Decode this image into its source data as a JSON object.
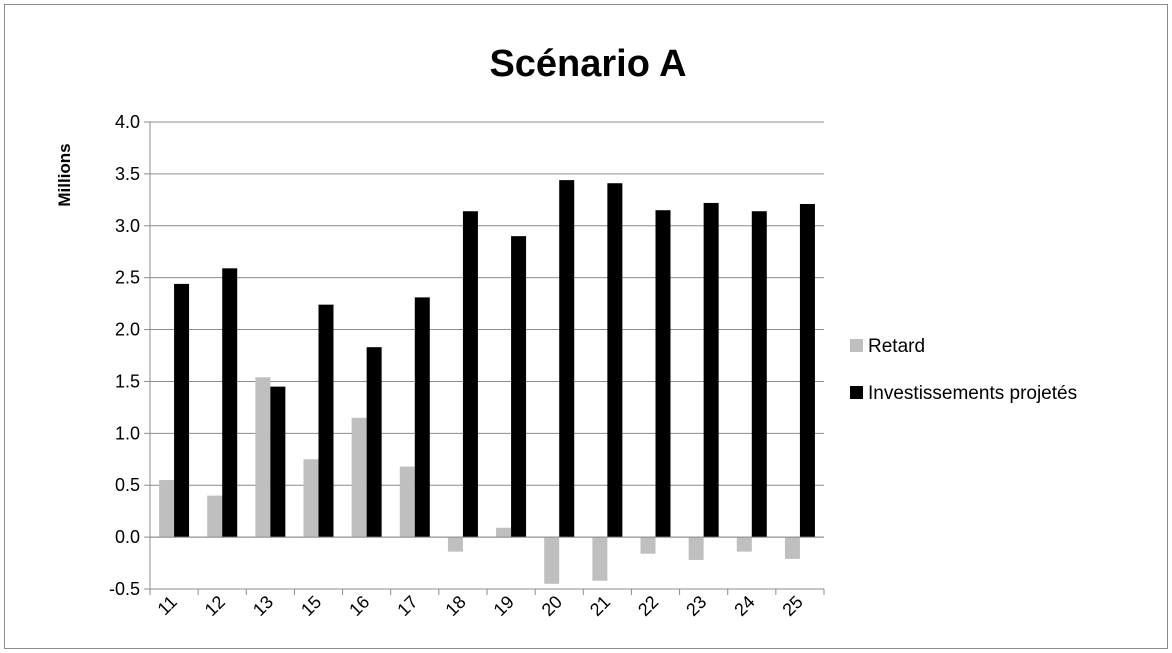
{
  "chart_data": {
    "type": "bar",
    "title": "Scénario A",
    "ylabel": "Millions",
    "xlabel": "",
    "categories": [
      "11",
      "12",
      "13",
      "15",
      "16",
      "17",
      "18",
      "19",
      "20",
      "21",
      "22",
      "23",
      "24",
      "25"
    ],
    "series": [
      {
        "name": "Retard",
        "color": "#bfbfbf",
        "values": [
          0.55,
          0.4,
          1.54,
          0.75,
          1.15,
          0.68,
          -0.14,
          0.09,
          -0.45,
          -0.42,
          -0.16,
          -0.22,
          -0.14,
          -0.21
        ]
      },
      {
        "name": "Investissements projetés",
        "color": "#000000",
        "values": [
          2.44,
          2.59,
          1.45,
          2.24,
          1.83,
          2.31,
          3.14,
          2.9,
          3.44,
          3.41,
          3.15,
          3.22,
          3.14,
          3.21
        ]
      }
    ],
    "ylim": [
      -0.5,
      4.0
    ],
    "yticks": [
      "-0.5",
      "0.0",
      "0.5",
      "1.0",
      "1.5",
      "2.0",
      "2.5",
      "3.0",
      "3.5",
      "4.0"
    ],
    "grid": true,
    "legend": "right"
  }
}
